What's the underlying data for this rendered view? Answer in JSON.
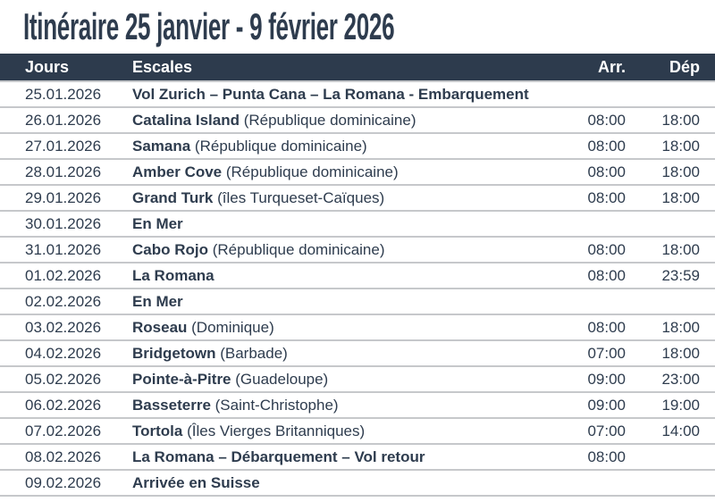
{
  "title": "Itinéraire 25 janvier - 9 février 2026",
  "colors": {
    "text_dark": "#2e3c4e",
    "header_bg": "#2d3b4d",
    "header_text": "#ffffff",
    "row_separator": "#c6c8cb",
    "row_bg": "#ffffff"
  },
  "table": {
    "headers": {
      "jours": "Jours",
      "escales": "Escales",
      "arr": "Arr.",
      "dep": "Dép"
    },
    "rows": [
      {
        "date": "25.01.2026",
        "port": "Vol Zurich – Punta Cana – La Romana - Embarquement",
        "detail": "",
        "arr": "",
        "dep": ""
      },
      {
        "date": "26.01.2026",
        "port": "Catalina Island",
        "detail": "(République dominicaine)",
        "arr": "08:00",
        "dep": "18:00"
      },
      {
        "date": "27.01.2026",
        "port": "Samana",
        "detail": "(République dominicaine)",
        "arr": "08:00",
        "dep": "18:00"
      },
      {
        "date": "28.01.2026",
        "port": "Amber Cove",
        "detail": "(République dominicaine)",
        "arr": "08:00",
        "dep": "18:00"
      },
      {
        "date": "29.01.2026",
        "port": "Grand Turk",
        "detail": "(îles Turqueset-Caïques)",
        "arr": "08:00",
        "dep": "18:00"
      },
      {
        "date": "30.01.2026",
        "port": "En Mer",
        "detail": "",
        "arr": "",
        "dep": ""
      },
      {
        "date": "31.01.2026",
        "port": "Cabo Rojo",
        "detail": "(République dominicaine)",
        "arr": "08:00",
        "dep": "18:00"
      },
      {
        "date": "01.02.2026",
        "port": "La Romana",
        "detail": "",
        "arr": "08:00",
        "dep": "23:59"
      },
      {
        "date": "02.02.2026",
        "port": "En Mer",
        "detail": "",
        "arr": "",
        "dep": ""
      },
      {
        "date": "03.02.2026",
        "port": "Roseau",
        "detail": "(Dominique)",
        "arr": "08:00",
        "dep": "18:00"
      },
      {
        "date": "04.02.2026",
        "port": "Bridgetown",
        "detail": "(Barbade)",
        "arr": "07:00",
        "dep": "18:00"
      },
      {
        "date": "05.02.2026",
        "port": "Pointe-à-Pitre",
        "detail": "(Guadeloupe)",
        "arr": "09:00",
        "dep": "23:00"
      },
      {
        "date": "06.02.2026",
        "port": "Basseterre",
        "detail": "(Saint-Christophe)",
        "arr": "09:00",
        "dep": "19:00"
      },
      {
        "date": "07.02.2026",
        "port": "Tortola",
        "detail": "(Îles Vierges Britanniques)",
        "arr": "07:00",
        "dep": "14:00"
      },
      {
        "date": "08.02.2026",
        "port": "La Romana – Débarquement – Vol retour",
        "detail": "",
        "arr": "08:00",
        "dep": ""
      },
      {
        "date": "09.02.2026",
        "port": "Arrivée en Suisse",
        "detail": "",
        "arr": "",
        "dep": ""
      }
    ]
  }
}
